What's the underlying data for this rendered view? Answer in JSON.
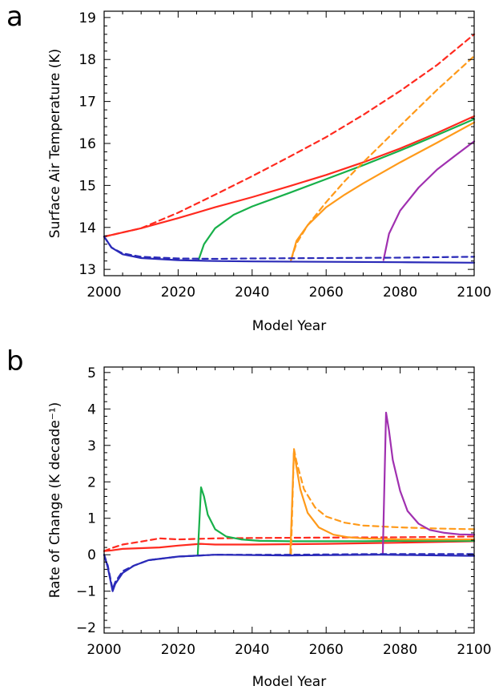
{
  "chart_data": [
    {
      "panel": "a",
      "type": "line",
      "xlabel": "Model Year",
      "ylabel": "Surface Air Temperature (K)",
      "xlim": [
        2000,
        2100
      ],
      "ylim": [
        12.85,
        19.15
      ],
      "xticks": [
        2000,
        2020,
        2040,
        2060,
        2080,
        2100
      ],
      "yticks": [
        13,
        14,
        15,
        16,
        17,
        18,
        19
      ],
      "series": [
        {
          "color": "#ff2a1f",
          "dash": "dashed",
          "x": [
            2000,
            2010,
            2020,
            2030,
            2040,
            2050,
            2060,
            2070,
            2080,
            2090,
            2100
          ],
          "y": [
            13.78,
            13.98,
            14.35,
            14.78,
            15.22,
            15.68,
            16.15,
            16.68,
            17.25,
            17.87,
            18.6
          ]
        },
        {
          "color": "#ff2a1f",
          "dash": "solid",
          "x": [
            2000,
            2010,
            2020,
            2030,
            2040,
            2050,
            2060,
            2070,
            2080,
            2090,
            2100
          ],
          "y": [
            13.78,
            13.98,
            14.22,
            14.48,
            14.72,
            14.98,
            15.25,
            15.55,
            15.88,
            16.25,
            16.65
          ]
        },
        {
          "color": "#18b04a",
          "dash": "solid",
          "x": [
            2025.5,
            2027,
            2030,
            2035,
            2040,
            2050,
            2060,
            2070,
            2080,
            2090,
            2100
          ],
          "y": [
            13.22,
            13.6,
            13.98,
            14.3,
            14.5,
            14.82,
            15.15,
            15.48,
            15.83,
            16.2,
            16.58
          ]
        },
        {
          "color": "#ff9a1a",
          "dash": "dashed",
          "x": [
            2050.5,
            2052,
            2055,
            2060,
            2065,
            2070,
            2075,
            2080,
            2085,
            2090,
            2095,
            2100
          ],
          "y": [
            13.22,
            13.62,
            14.05,
            14.6,
            15.1,
            15.55,
            15.98,
            16.42,
            16.85,
            17.28,
            17.68,
            18.08
          ]
        },
        {
          "color": "#ff9a1a",
          "dash": "solid",
          "x": [
            2050.5,
            2052,
            2055,
            2060,
            2065,
            2070,
            2080,
            2090,
            2100
          ],
          "y": [
            13.22,
            13.68,
            14.05,
            14.48,
            14.78,
            15.05,
            15.55,
            16.02,
            16.5
          ]
        },
        {
          "color": "#a030b0",
          "dash": "solid",
          "x": [
            2075.5,
            2077,
            2080,
            2085,
            2090,
            2095,
            2100
          ],
          "y": [
            13.22,
            13.85,
            14.4,
            14.95,
            15.38,
            15.72,
            16.05
          ]
        },
        {
          "color": "#2a2ab8",
          "dash": "dashed",
          "x": [
            2000,
            2002,
            2005,
            2010,
            2020,
            2030,
            2040,
            2060,
            2080,
            2100
          ],
          "y": [
            13.78,
            13.52,
            13.38,
            13.3,
            13.26,
            13.25,
            13.26,
            13.27,
            13.28,
            13.3
          ]
        },
        {
          "color": "#2a2ab8",
          "dash": "solid",
          "x": [
            2000,
            2002,
            2005,
            2010,
            2020,
            2030,
            2040,
            2060,
            2080,
            2100
          ],
          "y": [
            13.78,
            13.52,
            13.36,
            13.27,
            13.22,
            13.2,
            13.19,
            13.18,
            13.17,
            13.16
          ]
        }
      ]
    },
    {
      "panel": "b",
      "type": "line",
      "xlabel": "Model Year",
      "ylabel": "Rate of Change (K decade⁻¹)",
      "xlim": [
        2000,
        2100
      ],
      "ylim": [
        -2.15,
        5.15
      ],
      "xticks": [
        2000,
        2020,
        2040,
        2060,
        2080,
        2100
      ],
      "yticks": [
        -2,
        -1,
        0,
        1,
        2,
        3,
        4,
        5
      ],
      "series": [
        {
          "color": "#ff2a1f",
          "dash": "dashed",
          "x": [
            2000,
            2002,
            2005,
            2010,
            2015,
            2020,
            2030,
            2040,
            2060,
            2080,
            2100
          ],
          "y": [
            0.1,
            0.18,
            0.28,
            0.36,
            0.45,
            0.42,
            0.45,
            0.46,
            0.47,
            0.48,
            0.5
          ]
        },
        {
          "color": "#ff2a1f",
          "dash": "solid",
          "x": [
            2000,
            2002,
            2005,
            2010,
            2015,
            2020,
            2026,
            2030,
            2040,
            2060,
            2080,
            2100
          ],
          "y": [
            0.1,
            0.12,
            0.16,
            0.18,
            0.2,
            0.25,
            0.3,
            0.28,
            0.28,
            0.3,
            0.33,
            0.37
          ]
        },
        {
          "color": "#18b04a",
          "dash": "solid",
          "x": [
            2025.3,
            2026.2,
            2027,
            2028,
            2030,
            2033,
            2037,
            2042,
            2050,
            2060,
            2070,
            2080,
            2100
          ],
          "y": [
            0.0,
            1.85,
            1.6,
            1.1,
            0.7,
            0.5,
            0.42,
            0.38,
            0.37,
            0.37,
            0.37,
            0.38,
            0.38
          ]
        },
        {
          "color": "#ff9a1a",
          "dash": "dashed",
          "x": [
            2050.5,
            2051.3,
            2052,
            2054,
            2057,
            2060,
            2065,
            2070,
            2080,
            2090,
            2100
          ],
          "y": [
            0.0,
            2.9,
            2.55,
            1.8,
            1.3,
            1.05,
            0.88,
            0.8,
            0.75,
            0.72,
            0.7
          ]
        },
        {
          "color": "#ff9a1a",
          "dash": "solid",
          "x": [
            2050.3,
            2051.3,
            2052,
            2053,
            2055,
            2058,
            2062,
            2066,
            2070,
            2080,
            2090,
            2100
          ],
          "y": [
            0.0,
            2.85,
            2.4,
            1.8,
            1.15,
            0.75,
            0.55,
            0.48,
            0.45,
            0.42,
            0.42,
            0.42
          ]
        },
        {
          "color": "#a030b0",
          "dash": "solid",
          "x": [
            2075.3,
            2076.2,
            2077,
            2078,
            2080,
            2082,
            2085,
            2088,
            2092,
            2096,
            2100
          ],
          "y": [
            0.0,
            3.9,
            3.4,
            2.6,
            1.75,
            1.2,
            0.85,
            0.68,
            0.6,
            0.56,
            0.55
          ]
        },
        {
          "color": "#2a2ab8",
          "dash": "dashed",
          "x": [
            2000,
            2001,
            2002.3,
            2003,
            2005,
            2008,
            2012,
            2020,
            2030,
            2050,
            2075,
            2100
          ],
          "y": [
            0.0,
            -0.3,
            -0.95,
            -0.75,
            -0.45,
            -0.3,
            -0.15,
            -0.05,
            0.0,
            0.0,
            0.02,
            0.02
          ]
        },
        {
          "color": "#2a2ab8",
          "dash": "solid",
          "x": [
            2000,
            2001,
            2002.3,
            2003,
            2005,
            2008,
            2012,
            2020,
            2030,
            2050,
            2075,
            2100
          ],
          "y": [
            0.0,
            -0.35,
            -1.0,
            -0.8,
            -0.5,
            -0.3,
            -0.15,
            -0.05,
            0.0,
            -0.02,
            0.0,
            -0.03
          ]
        }
      ]
    }
  ]
}
